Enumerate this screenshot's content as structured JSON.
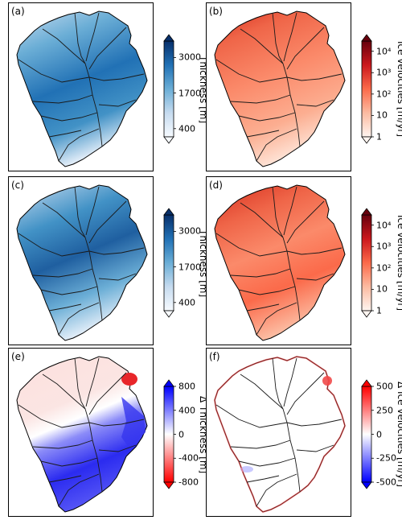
{
  "colors": {
    "blues": [
      "#f7fbff",
      "#c6dbef",
      "#6baed6",
      "#2171b5",
      "#08306b"
    ],
    "reds": [
      "#fff5f0",
      "#fcbba1",
      "#fb6a4a",
      "#cb181d",
      "#67000d"
    ],
    "diverging": [
      "#0000ff",
      "#ffffff",
      "#ff0000"
    ],
    "outline": "#000000",
    "basins": "#1a1a1a"
  },
  "chart_data": [
    {
      "id": "a",
      "panel_label": "(a)",
      "type": "heatmap",
      "field": "ice thickness map",
      "colorbar": {
        "label": "Thickness [m]",
        "ticks": [
          "3000",
          "1700",
          "400"
        ],
        "tick_values": [
          3000,
          1700,
          400
        ],
        "range": [
          100,
          3600
        ],
        "scale": "linear",
        "cmap": "blues",
        "extend": "both"
      }
    },
    {
      "id": "b",
      "panel_label": "(b)",
      "type": "heatmap",
      "field": "ice velocity map",
      "colorbar": {
        "label": "Ice velocities [m/yr]",
        "ticks": [
          "10⁴",
          "10³",
          "10²",
          "10",
          "1"
        ],
        "tick_values": [
          10000,
          1000,
          100,
          10,
          1
        ],
        "range": [
          1,
          30000
        ],
        "scale": "log",
        "cmap": "reds",
        "extend": "both"
      }
    },
    {
      "id": "c",
      "panel_label": "(c)",
      "type": "heatmap",
      "field": "ice thickness map",
      "colorbar": {
        "label": "Thickness [m]",
        "ticks": [
          "3000",
          "1700",
          "400"
        ],
        "tick_values": [
          3000,
          1700,
          400
        ],
        "range": [
          100,
          3600
        ],
        "scale": "linear",
        "cmap": "blues",
        "extend": "both"
      }
    },
    {
      "id": "d",
      "panel_label": "(d)",
      "type": "heatmap",
      "field": "ice velocity map",
      "colorbar": {
        "label": "Ice velocities [m/yr]",
        "ticks": [
          "10⁴",
          "10³",
          "10²",
          "10",
          "1"
        ],
        "tick_values": [
          10000,
          1000,
          100,
          10,
          1
        ],
        "range": [
          1,
          30000
        ],
        "scale": "log",
        "cmap": "reds",
        "extend": "both"
      }
    },
    {
      "id": "e",
      "panel_label": "(e)",
      "type": "heatmap",
      "field": "thickness difference map",
      "colorbar": {
        "label": "Δ Thickness [m]",
        "ticks": [
          "800",
          "400",
          "0",
          "-400",
          "-800"
        ],
        "tick_values": [
          800,
          400,
          0,
          -400,
          -800
        ],
        "range": [
          -800,
          800
        ],
        "scale": "linear",
        "cmap": "diverging-reversed",
        "extend": "both"
      }
    },
    {
      "id": "f",
      "panel_label": "(f)",
      "type": "heatmap",
      "field": "velocity difference map",
      "colorbar": {
        "label": "Δ Ice velocities [m/yr]",
        "ticks": [
          "500",
          "250",
          "0",
          "-250",
          "-500"
        ],
        "tick_values": [
          500,
          250,
          0,
          -250,
          -500
        ],
        "range": [
          -500,
          500
        ],
        "scale": "linear",
        "cmap": "diverging",
        "extend": "both"
      }
    }
  ]
}
